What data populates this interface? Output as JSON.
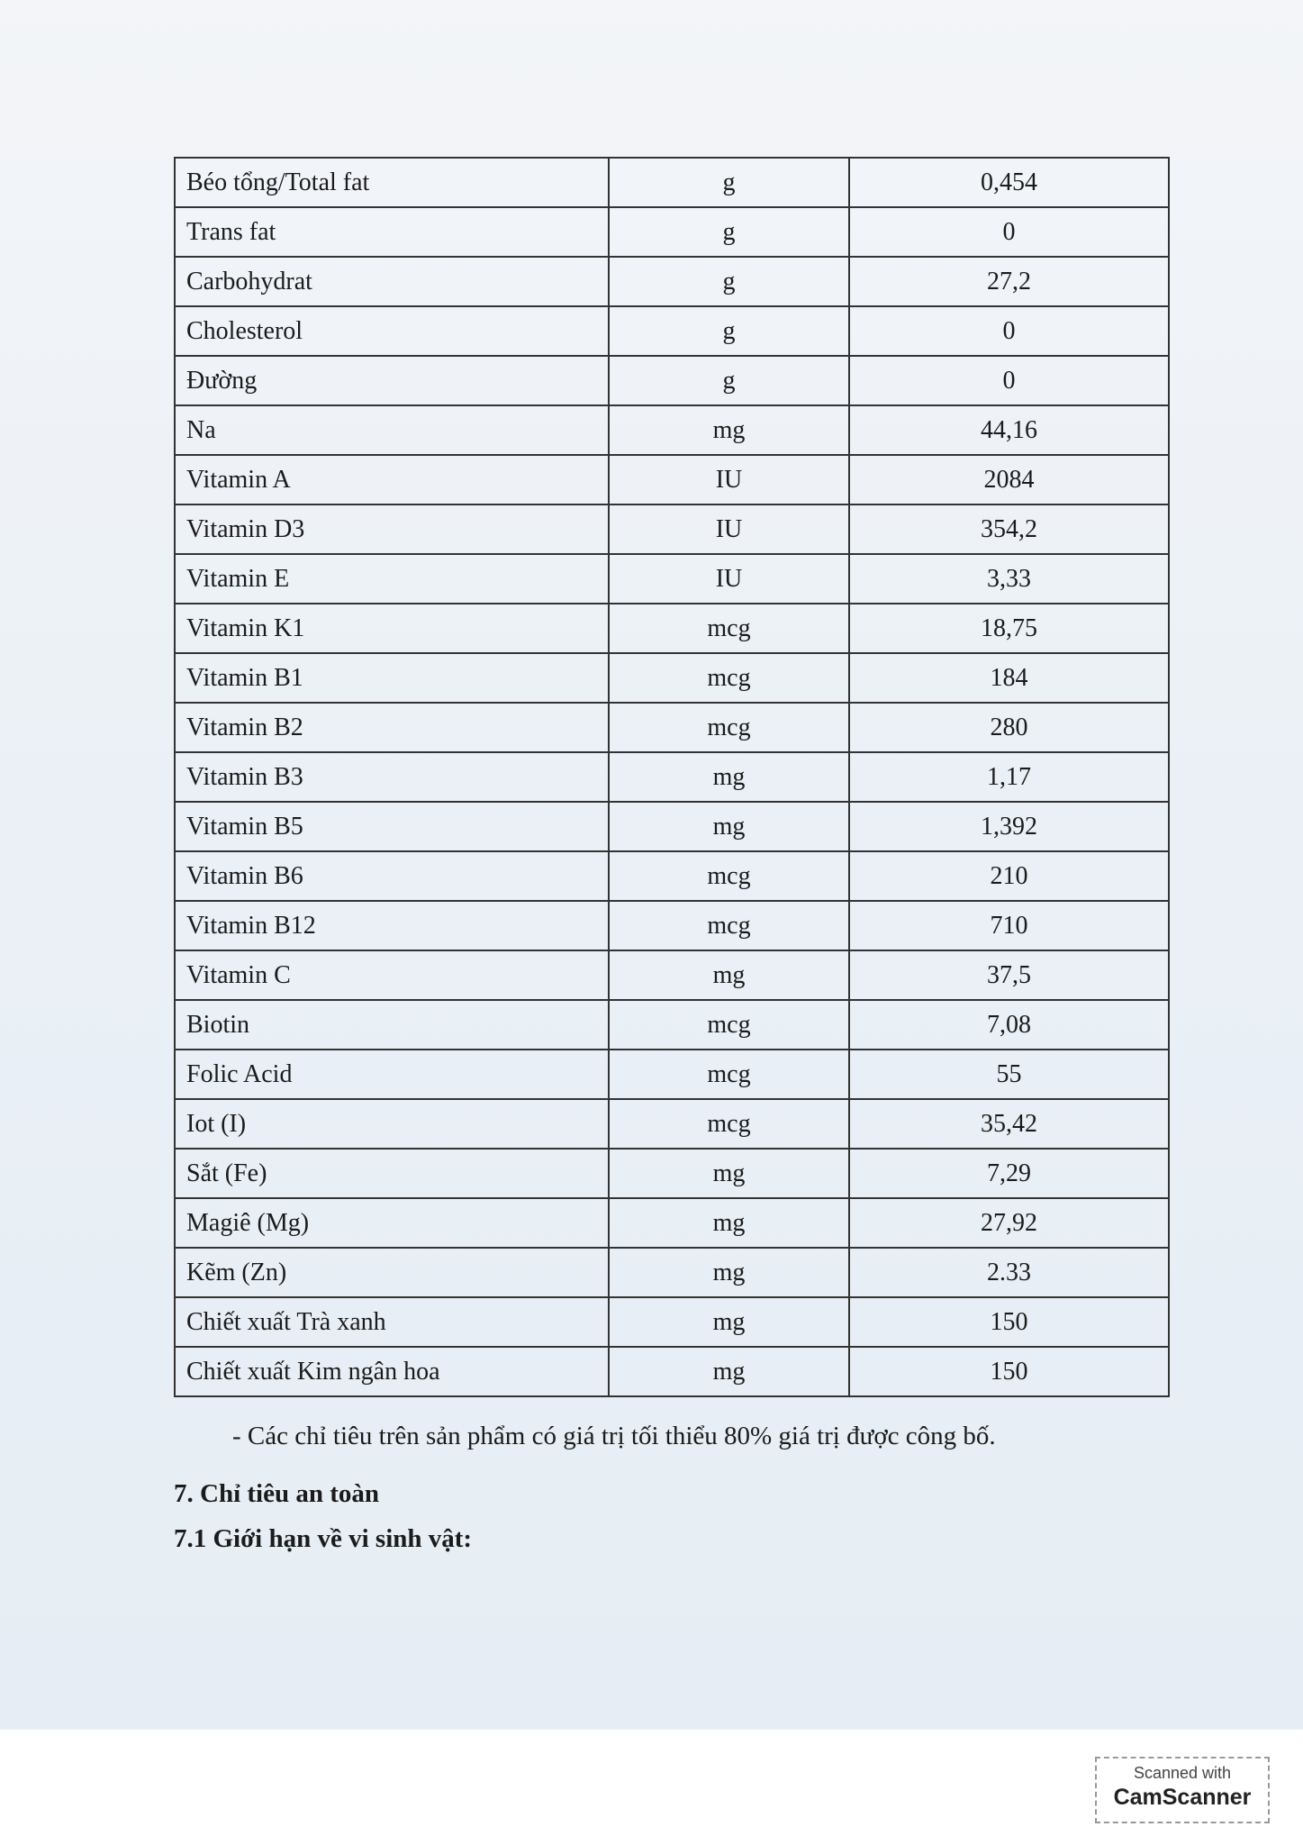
{
  "table": {
    "rows": [
      [
        "Béo tổng/Total fat",
        "g",
        "0,454"
      ],
      [
        "Trans fat",
        "g",
        "0"
      ],
      [
        "Carbohydrat",
        "g",
        "27,2"
      ],
      [
        "Cholesterol",
        "g",
        "0"
      ],
      [
        "Đường",
        "g",
        "0"
      ],
      [
        "Na",
        "mg",
        "44,16"
      ],
      [
        "Vitamin A",
        "IU",
        "2084"
      ],
      [
        "Vitamin D3",
        "IU",
        "354,2"
      ],
      [
        "Vitamin E",
        "IU",
        "3,33"
      ],
      [
        "Vitamin K1",
        "mcg",
        "18,75"
      ],
      [
        "Vitamin B1",
        "mcg",
        "184"
      ],
      [
        "Vitamin B2",
        "mcg",
        "280"
      ],
      [
        "Vitamin B3",
        "mg",
        "1,17"
      ],
      [
        "Vitamin B5",
        "mg",
        "1,392"
      ],
      [
        "Vitamin B6",
        "mcg",
        "210"
      ],
      [
        "Vitamin B12",
        "mcg",
        "710"
      ],
      [
        "Vitamin C",
        "mg",
        "37,5"
      ],
      [
        "Biotin",
        "mcg",
        "7,08"
      ],
      [
        "Folic Acid",
        "mcg",
        "55"
      ],
      [
        "Iot (I)",
        "mcg",
        "35,42"
      ],
      [
        "Sắt (Fe)",
        "mg",
        "7,29"
      ],
      [
        "Magiê (Mg)",
        "mg",
        "27,92"
      ],
      [
        "Kẽm (Zn)",
        "mg",
        "2.33"
      ],
      [
        "Chiết xuất Trà xanh",
        "mg",
        "150"
      ],
      [
        "Chiết xuất Kim ngân hoa",
        "mg",
        "150"
      ]
    ]
  },
  "note": "- Các chỉ tiêu trên sản phẩm có giá trị tối thiểu 80% giá trị được công bố.",
  "section": {
    "heading": "7. Chỉ tiêu an toàn",
    "subheading": "7.1 Giới hạn về vi sinh vật:"
  },
  "badge": {
    "line1": "Scanned with",
    "line2": "CamScanner"
  }
}
